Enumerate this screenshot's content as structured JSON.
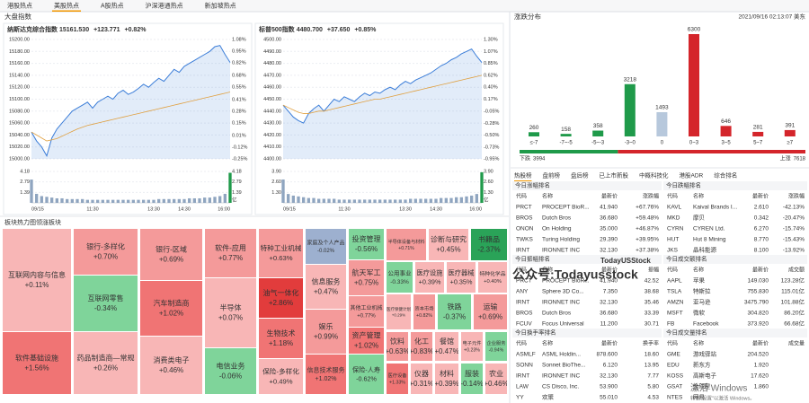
{
  "tabs": {
    "items": [
      "港股热点",
      "美股热点",
      "A股热点",
      "沪深港通热点",
      "新加坡热点"
    ],
    "active": 1
  },
  "index_header": "大盘指数",
  "chart_data": [
    {
      "type": "line",
      "title": "纳斯达克综合指数",
      "quote": [
        "15161.530",
        "+123.771",
        "+0.82%"
      ],
      "categories": [
        "09/15",
        null,
        null,
        null,
        null,
        null,
        null,
        null,
        null,
        null,
        null,
        null,
        "11:30",
        null,
        null,
        null,
        null,
        null,
        null,
        null,
        null,
        null,
        null,
        null,
        "13:30",
        null,
        null,
        null,
        null,
        null,
        "14:30",
        null,
        null,
        null,
        null,
        null,
        null,
        null,
        null,
        "16:00"
      ],
      "series": [
        {
          "color": "#3b7dd8",
          "values": [
            15045,
            15030,
            15020,
            15005,
            15035,
            15050,
            15060,
            15070,
            15080,
            15085,
            15090,
            15095,
            15085,
            15095,
            15100,
            15105,
            15100,
            15110,
            15115,
            15108,
            15112,
            15118,
            15125,
            15120,
            15128,
            15135,
            15130,
            15140,
            15150,
            15145,
            15155,
            15160,
            15165,
            15170,
            15175,
            15180,
            15188,
            15190,
            15175,
            15161.53
          ]
        },
        {
          "color": "#e0a040",
          "values": [
            15045,
            15040,
            15035,
            15030,
            15032,
            15034,
            15038,
            15042,
            15046,
            15050,
            15053,
            15056,
            15058,
            15060,
            15062,
            15064,
            15066,
            15068,
            15070,
            15072,
            15074,
            15076,
            15078,
            15080,
            15082,
            15084,
            15086,
            15088,
            15090,
            15092,
            15094,
            15096,
            15098,
            15100,
            15102,
            15104,
            15106,
            15108,
            15110,
            15112
          ]
        }
      ],
      "ylim": [
        15000,
        15200
      ],
      "yticks": [
        {
          "value": 15200,
          "label": "15200.00"
        },
        {
          "value": 15180,
          "label": "15180.00"
        },
        {
          "value": 15160,
          "label": "15160.00"
        },
        {
          "value": 15140,
          "label": "15140.00"
        },
        {
          "value": 15120,
          "label": "15120.00"
        },
        {
          "value": 15100,
          "label": "15100.00"
        },
        {
          "value": 15080,
          "label": "15080.00"
        },
        {
          "value": 15060,
          "label": "15060.00"
        },
        {
          "value": 15040,
          "label": "15040.00"
        },
        {
          "value": 15020,
          "label": "15020.00"
        },
        {
          "value": 15000,
          "label": "15000.00"
        }
      ],
      "y2lim": [
        -0.25,
        1.08
      ],
      "y2ticks": [
        {
          "value": 1.08,
          "label": "1.08%"
        },
        {
          "value": 0.95,
          "label": "0.95%"
        },
        {
          "value": 0.82,
          "label": "0.82%"
        },
        {
          "value": 0.68,
          "label": "0.68%"
        },
        {
          "value": 0.55,
          "label": "0.55%"
        },
        {
          "value": 0.41,
          "label": "0.41%"
        },
        {
          "value": 0.28,
          "label": "0.28%"
        },
        {
          "value": 0.15,
          "label": "0.15%"
        },
        {
          "value": 0.01,
          "label": "0.01%"
        },
        {
          "value": -0.12,
          "label": "-0.12%"
        },
        {
          "value": -0.25,
          "label": "-0.25%"
        }
      ],
      "grid": true,
      "volume": {
        "color": "#8fa5c0",
        "unit": "亿",
        "ylim": [
          0,
          4.18
        ],
        "yticks": [
          4.18,
          2.79,
          1.39
        ],
        "values": [
          3.1,
          1.2,
          0.9,
          0.8,
          0.7,
          0.6,
          0.6,
          0.5,
          0.5,
          0.5,
          0.5,
          0.4,
          0.4,
          0.4,
          0.4,
          0.4,
          0.4,
          0.4,
          0.4,
          0.4,
          0.4,
          0.4,
          0.4,
          0.4,
          0.4,
          0.5,
          0.5,
          0.5,
          0.5,
          0.5,
          0.5,
          0.6,
          0.6,
          0.6,
          0.7,
          0.7,
          0.8,
          0.9,
          1.2,
          4.0
        ]
      }
    },
    {
      "type": "line",
      "title": "标普500指数",
      "quote": [
        "4480.700",
        "+37.650",
        "+0.85%"
      ],
      "categories": [
        "09/15",
        null,
        null,
        null,
        null,
        null,
        null,
        null,
        null,
        null,
        null,
        null,
        "11:30",
        null,
        null,
        null,
        null,
        null,
        null,
        null,
        null,
        null,
        null,
        null,
        "13:30",
        null,
        null,
        null,
        null,
        null,
        "14:30",
        null,
        null,
        null,
        null,
        null,
        null,
        null,
        null,
        "16:00"
      ],
      "series": [
        {
          "color": "#3b7dd8",
          "values": [
            4445,
            4440,
            4435,
            4432,
            4430,
            4438,
            4442,
            4445,
            4440,
            4445,
            4450,
            4448,
            4452,
            4450,
            4448,
            4452,
            4455,
            4453,
            4456,
            4455,
            4458,
            4460,
            4458,
            4462,
            4465,
            4463,
            4466,
            4468,
            4470,
            4472,
            4475,
            4478,
            4480,
            4483,
            4485,
            4488,
            4490,
            4492,
            4486,
            4480.7
          ]
        },
        {
          "color": "#e0a040",
          "values": [
            4445,
            4443,
            4441,
            4439,
            4438,
            4438,
            4439,
            4440,
            4440,
            4441,
            4442,
            4443,
            4444,
            4445,
            4446,
            4447,
            4448,
            4449,
            4450,
            4450,
            4451,
            4452,
            4453,
            4454,
            4455,
            4456,
            4457,
            4458,
            4459,
            4460,
            4461,
            4462,
            4463,
            4464,
            4465,
            4466,
            4467,
            4468,
            4469,
            4470
          ]
        }
      ],
      "ylim": [
        4400,
        4500
      ],
      "yticks": [
        {
          "value": 4500,
          "label": "4500.00"
        },
        {
          "value": 4490,
          "label": "4490.00"
        },
        {
          "value": 4480,
          "label": "4480.00"
        },
        {
          "value": 4470,
          "label": "4470.00"
        },
        {
          "value": 4460,
          "label": "4460.00"
        },
        {
          "value": 4450,
          "label": "4450.00"
        },
        {
          "value": 4440,
          "label": "4440.00"
        },
        {
          "value": 4430,
          "label": "4430.00"
        },
        {
          "value": 4420,
          "label": "4420.00"
        },
        {
          "value": 4410,
          "label": "4410.00"
        },
        {
          "value": 4400,
          "label": "4400.00"
        }
      ],
      "y2lim": [
        -0.95,
        1.3
      ],
      "y2ticks": [
        {
          "value": 1.3,
          "label": "1.30%"
        },
        {
          "value": 1.07,
          "label": "1.07%"
        },
        {
          "value": 0.85,
          "label": "0.85%"
        },
        {
          "value": 0.62,
          "label": "0.62%"
        },
        {
          "value": 0.4,
          "label": "0.40%"
        },
        {
          "value": 0.17,
          "label": "0.17%"
        },
        {
          "value": -0.05,
          "label": "-0.05%"
        },
        {
          "value": -0.28,
          "label": "-0.28%"
        },
        {
          "value": -0.5,
          "label": "-0.50%"
        },
        {
          "value": -0.73,
          "label": "-0.73%"
        },
        {
          "value": -0.95,
          "label": "-0.95%"
        }
      ],
      "grid": true,
      "volume": {
        "color": "#8fa5c0",
        "unit": "亿",
        "ylim": [
          0,
          3.9
        ],
        "yticks": [
          {
            "value": 3.9,
            "label": "3.90"
          },
          {
            "value": 2.6,
            "label": "2.60"
          },
          {
            "value": 1.3,
            "label": "1.30"
          }
        ],
        "values": [
          2.9,
          1.1,
          0.9,
          0.8,
          0.7,
          0.6,
          0.6,
          0.5,
          0.5,
          0.5,
          0.5,
          0.4,
          0.4,
          0.4,
          0.4,
          0.4,
          0.4,
          0.4,
          0.4,
          0.4,
          0.4,
          0.4,
          0.4,
          0.4,
          0.4,
          0.5,
          0.5,
          0.5,
          0.5,
          0.5,
          0.5,
          0.6,
          0.6,
          0.6,
          0.7,
          0.7,
          0.8,
          0.9,
          1.1,
          3.8
        ]
      }
    },
    {
      "type": "bar",
      "title": "涨跌分布",
      "timestamp": "2021/09/16 02:13:07 美东",
      "categories": [
        "≤-7",
        "-7~-5",
        "-5~-3",
        "-3~0",
        "0",
        "0~3",
        "3~5",
        "5~7",
        "≥7"
      ],
      "values": [
        260,
        158,
        358,
        3218,
        1493,
        6300,
        646,
        281,
        391
      ],
      "colors": [
        "#1f9a4a",
        "#1f9a4a",
        "#1f9a4a",
        "#1f9a4a",
        "#b7c8dc",
        "#d4252b",
        "#d4252b",
        "#d4252b",
        "#d4252b"
      ],
      "breadth": {
        "down_label": "下跌",
        "down": 3994,
        "up_label": "上涨",
        "up": 7618,
        "down_color": "#1f9a4a",
        "up_color": "#d4252b"
      }
    },
    {
      "type": "treemap",
      "title": "板块热力图",
      "tab": "领涨板块",
      "categories": [
        "互联网内容与信息",
        "软件基础设施",
        "银行-多样化",
        "互联网零售",
        "药品制造商—常规",
        "银行-区域",
        "汽车制造商",
        "消费类电子",
        "软件-应用",
        "半导体",
        "电信业务",
        "特种工业机械",
        "油气一体化",
        "生物技术",
        "保险-多样化",
        "家庭及个人产品",
        "信息服务",
        "娱乐",
        "信息技术服务",
        "投资管理",
        "航天军工",
        "其他工业机械",
        "资产管理",
        "保险-人寿",
        "半导体设备与材料",
        "诊断与研究",
        "书籍品",
        "公用事业",
        "医疗设施",
        "医疗器械",
        "特种化学品",
        "医疗保健计划",
        "资本市场",
        "铁路",
        "运输",
        "饮料",
        "化工",
        "餐馆",
        "电子元件",
        "企业服务",
        "医疗设备",
        "仪器",
        "材料",
        "服装",
        "农业"
      ],
      "values": [
        0.11,
        1.56,
        0.7,
        -0.34,
        0.26,
        0.69,
        1.02,
        0.46,
        0.77,
        0.07,
        -0.06,
        0.63,
        2.86,
        1.18,
        0.49,
        -0.02,
        0.47,
        0.99,
        1.02,
        -0.56,
        0.75,
        0.77,
        1.02,
        -0.62,
        0.71,
        0.45,
        -2.37,
        -0.33,
        0.39,
        0.35,
        0.4,
        0.29,
        0.82,
        -0.37,
        0.69,
        0.63,
        0.83,
        0.47,
        0.23,
        -0.94,
        1.33,
        0.31,
        0.39,
        -0.14,
        0.46
      ],
      "value_labels": [
        "+0.11%",
        "+1.56%",
        "+0.70%",
        "-0.34%",
        "+0.26%",
        "+0.69%",
        "+1.02%",
        "+0.46%",
        "+0.77%",
        "+0.07%",
        "-0.06%",
        "+0.63%",
        "+2.86%",
        "+1.18%",
        "+0.49%",
        "-0.02%",
        "+0.47%",
        "+0.99%",
        "+1.02%",
        "-0.56%",
        "+0.75%",
        "+0.77%",
        "+1.02%",
        "-0.62%",
        "+0.71%",
        "+0.45%",
        "-2.37%",
        "-0.33%",
        "+0.39%",
        "+0.35%",
        "+0.40%",
        "+0.29%",
        "+0.82%",
        "-0.37%",
        "+0.69%",
        "+0.63%",
        "+0.83%",
        "+0.47%",
        "+0.23%",
        "-0.94%",
        "+1.33%",
        "+0.31%",
        "+0.39%",
        "-0.14%",
        "+0.46%"
      ]
    }
  ],
  "rank_tabs": {
    "items": [
      "热股榜",
      "盘前榜",
      "盘后榜",
      "已上市新股",
      "中概科技化",
      "港股ADR",
      "综合排名"
    ],
    "active": 0
  },
  "tables": [
    {
      "title": "今日涨幅排名",
      "headers": [
        "代码",
        "名称",
        "最新价",
        "涨跌幅"
      ],
      "price_color": "#e02424",
      "value_color": "#e02424",
      "rows": [
        [
          "PRCT",
          "PROCEPT BioR...",
          "41.940",
          "+67.76%"
        ],
        [
          "BROS",
          "Dutch Bros",
          "36.680",
          "+59.48%"
        ],
        [
          "ONON",
          "On Holding",
          "35.000",
          "+46.87%"
        ],
        [
          "TWKS",
          "Turing Holding",
          "29.390",
          "+39.95%"
        ],
        [
          "IRNT",
          "IRONNET INC",
          "32.130",
          "+37.38%"
        ]
      ]
    },
    {
      "title": "今日跌幅排名",
      "headers": [
        "代码",
        "名称",
        "最新价",
        "涨跌幅"
      ],
      "price_color": "#0c9a3c",
      "value_color": "#0c9a3c",
      "rows": [
        [
          "KAVL",
          "Kaival Brands I...",
          "2.610",
          "-42.13%"
        ],
        [
          "MKD",
          "摩贝",
          "0.342",
          "-20.47%"
        ],
        [
          "CYRN",
          "CYREN Ltd.",
          "6.270",
          "-15.74%"
        ],
        [
          "HUT",
          "Hut 8 Mining",
          "8.770",
          "-15.43%"
        ],
        [
          "JKS",
          "晶科能源",
          "8.100",
          "-13.92%"
        ]
      ]
    },
    {
      "title": "今日振幅排名",
      "headers": [
        "代码",
        "名称",
        "最新价",
        "振幅"
      ],
      "price_color": "#e02424",
      "value_color": "#333333",
      "rows": [
        [
          "PRCT",
          "PROCEPT BioR...",
          "41.940",
          "42.52"
        ],
        [
          "ANY",
          "Sphere 3D Co...",
          "7.350",
          "38.68"
        ],
        [
          "IRNT",
          "IRONNET INC",
          "32.130",
          "35.46"
        ],
        [
          "BROS",
          "Dutch Bros",
          "36.680",
          "33.39"
        ],
        [
          "FCUV",
          "Focus Universal",
          "11.200",
          "30.71"
        ]
      ]
    },
    {
      "title": "今日成交额排名",
      "headers": [
        "代码",
        "名称",
        "最新价",
        "成交额"
      ],
      "price_color": "#e02424",
      "value_color": "#333333",
      "rows": [
        [
          "AAPL",
          "苹果",
          "149.030",
          "123.28亿"
        ],
        [
          "TSLA",
          "特斯拉",
          "755.830",
          "115.01亿"
        ],
        [
          "AMZN",
          "亚马逊",
          "3475.790",
          "101.88亿"
        ],
        [
          "MSFT",
          "微软",
          "304.820",
          "86.20亿"
        ],
        [
          "FB",
          "Facebook",
          "373.920",
          "66.68亿"
        ]
      ]
    },
    {
      "title": "今日换手率排名",
      "headers": [
        "代码",
        "名称",
        "最新价",
        "换手率"
      ],
      "price_color": "#e02424",
      "value_color": "#333333",
      "rows": [
        [
          "ASMLF",
          "ASML Holdin...",
          "878.600",
          "18.60"
        ],
        [
          "SONN",
          "Sonnet BioThe...",
          "6.120",
          "13.95"
        ],
        [
          "IRNT",
          "IRONNET INC",
          "32.130",
          "7.77"
        ],
        [
          "LAW",
          "CS Disco, Inc.",
          "53.900",
          "5.80"
        ],
        [
          "YY",
          "欢聚",
          "55.010",
          "4.53"
        ]
      ]
    },
    {
      "title": "今日成交量排名",
      "headers": [
        "代码",
        "名称",
        "最新价",
        "成交量"
      ],
      "price_color": "#e02424",
      "value_color": "#333333",
      "rows": [
        [
          "GME",
          "游戏驿站",
          "204.520"
        ],
        [
          "EDU",
          "新东方",
          "1.920"
        ],
        [
          "KOSS",
          "高斯电子",
          "17.620"
        ],
        [
          "GSAT",
          "全球星",
          "1.860"
        ],
        [
          "NTES",
          "网易"
        ]
      ]
    }
  ],
  "watermarks": {
    "account": "公众号:Todayusstock",
    "logo": "TodayUSStock",
    "windows": "激活 Windows",
    "windows_hint": "转到\"设置\"以激活 Windows。"
  }
}
